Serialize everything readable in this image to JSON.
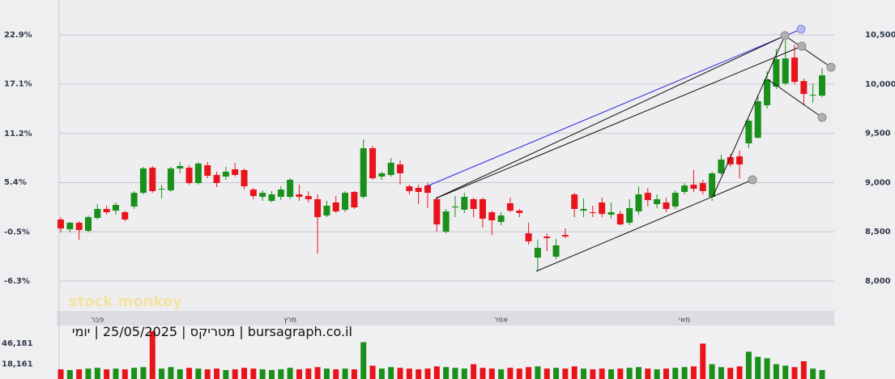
{
  "chart_data": {
    "type": "candlestick",
    "categories": [
      null,
      null,
      null,
      null,
      "פבר",
      null,
      null,
      null,
      null,
      null,
      null,
      null,
      null,
      null,
      null,
      null,
      null,
      null,
      null,
      null,
      null,
      null,
      null,
      null,
      null,
      "מרץ",
      null,
      null,
      null,
      null,
      null,
      null,
      null,
      null,
      null,
      null,
      null,
      null,
      null,
      null,
      null,
      null,
      null,
      null,
      null,
      null,
      null,
      null,
      "אפר",
      null,
      null,
      null,
      null,
      null,
      null,
      null,
      null,
      null,
      null,
      null,
      null,
      null,
      null,
      null,
      null,
      null,
      null,
      null,
      "מאי",
      null,
      null,
      null,
      null,
      null,
      null,
      null,
      null,
      null,
      null,
      null,
      null,
      null,
      null,
      null
    ],
    "open": [
      8625,
      8526,
      8592,
      8510,
      8641,
      8732,
      8715,
      8699,
      8757,
      8896,
      9151,
      8929,
      8921,
      9143,
      9151,
      8995,
      9176,
      9077,
      9061,
      9135,
      9127,
      8929,
      8855,
      8814,
      8855,
      8855,
      8880,
      8863,
      8831,
      8666,
      8798,
      8724,
      8905,
      8855,
      9349,
      9061,
      9077,
      9184,
      8962,
      8946,
      8970,
      8831,
      8501,
      8748,
      8724,
      8831,
      8831,
      8699,
      8600,
      8790,
      8715,
      8485,
      8238,
      8452,
      8247,
      8468,
      8880,
      8715,
      8699,
      8798,
      8674,
      8682,
      8592,
      8707,
      8896,
      8781,
      8798,
      8757,
      8905,
      8978,
      8995,
      8855,
      9094,
      9258,
      9266,
      9398,
      9455,
      9785,
      9974,
      10007,
      10270,
      10031,
      9883,
      9883
    ],
    "high": [
      8649,
      8600,
      8608,
      8666,
      8781,
      8765,
      8798,
      8715,
      8913,
      9160,
      9168,
      8978,
      9160,
      9209,
      9176,
      9209,
      9209,
      9110,
      9160,
      9201,
      9143,
      8946,
      8921,
      8913,
      8962,
      9044,
      8978,
      8913,
      8880,
      8814,
      8863,
      8913,
      8913,
      9439,
      9373,
      9110,
      9250,
      9225,
      8978,
      8978,
      8995,
      8855,
      8732,
      8863,
      8896,
      8847,
      8847,
      8715,
      8699,
      8847,
      8732,
      8592,
      8419,
      8485,
      8427,
      8534,
      8896,
      8839,
      8765,
      8847,
      8798,
      8715,
      8831,
      8962,
      8946,
      8880,
      8847,
      8921,
      8995,
      9127,
      9028,
      9110,
      9283,
      9291,
      9324,
      9645,
      9891,
      10130,
      10360,
      10443,
      10401,
      10056,
      10007,
      10163
    ],
    "low": [
      8493,
      8493,
      8419,
      8493,
      8625,
      8674,
      8674,
      8608,
      8732,
      8880,
      8896,
      8839,
      8905,
      9094,
      8978,
      8978,
      9044,
      8954,
      9028,
      9061,
      8929,
      8831,
      8814,
      8798,
      8822,
      8831,
      8814,
      8798,
      8279,
      8649,
      8691,
      8699,
      8732,
      8839,
      9028,
      9028,
      9061,
      8978,
      8880,
      8781,
      8740,
      8501,
      8485,
      8649,
      8691,
      8649,
      8543,
      8468,
      8567,
      8699,
      8649,
      8370,
      8107,
      8304,
      8222,
      8436,
      8649,
      8649,
      8649,
      8649,
      8633,
      8567,
      8567,
      8674,
      8757,
      8740,
      8699,
      8732,
      8880,
      8905,
      8880,
      8814,
      9077,
      9160,
      9044,
      9349,
      9447,
      9752,
      9949,
      9990,
      9998,
      9785,
      9809,
      9867
    ],
    "close": [
      8534,
      8592,
      8518,
      8649,
      8732,
      8699,
      8773,
      8625,
      8896,
      9143,
      8913,
      8937,
      9143,
      9168,
      8995,
      9193,
      9069,
      8995,
      9110,
      9077,
      8962,
      8863,
      8896,
      8880,
      8929,
      9028,
      8855,
      8831,
      8649,
      8765,
      8707,
      8896,
      8748,
      9349,
      9044,
      9094,
      9201,
      9094,
      8913,
      8905,
      8896,
      8575,
      8707,
      8757,
      8855,
      8732,
      8633,
      8617,
      8666,
      8715,
      8691,
      8403,
      8337,
      8436,
      8362,
      8452,
      8732,
      8732,
      8691,
      8682,
      8699,
      8575,
      8740,
      8880,
      8822,
      8831,
      8732,
      8896,
      8970,
      8937,
      8913,
      9094,
      9234,
      9184,
      9184,
      9628,
      9826,
      10048,
      10253,
      10261,
      10023,
      9900,
      9891,
      10089
    ],
    "volume": {
      "values": [
        11000,
        10000,
        11000,
        12000,
        13000,
        11000,
        12000,
        11000,
        13000,
        14000,
        63000,
        12000,
        14000,
        11000,
        13000,
        12000,
        11000,
        12000,
        10000,
        11000,
        13000,
        12000,
        11000,
        10000,
        11000,
        13000,
        11000,
        12000,
        14000,
        12000,
        11000,
        12000,
        11000,
        48000,
        16000,
        12000,
        14000,
        13000,
        12000,
        11000,
        12000,
        15000,
        14000,
        13000,
        12000,
        18000,
        13000,
        12000,
        11000,
        13000,
        12000,
        14000,
        15000,
        12000,
        13000,
        12000,
        15000,
        12000,
        11000,
        12000,
        11000,
        12000,
        13000,
        14000,
        12000,
        11000,
        12000,
        13000,
        14000,
        15000,
        46000,
        18000,
        14000,
        13000,
        15000,
        35000,
        28000,
        26000,
        18000,
        16000,
        14000,
        22000,
        12000,
        10000
      ],
      "ylim": [
        0,
        64000
      ],
      "yticks": [
        {
          "value": 18161,
          "label": "18,161"
        },
        {
          "value": 46181,
          "label": "46,181"
        }
      ]
    },
    "up_color": "#1a8f1a",
    "down_color": "#e8141c",
    "ylim": [
      7696,
      10854
    ],
    "yticks": [
      {
        "value": 8000,
        "label": "8,000"
      },
      {
        "value": 8500,
        "label": "8,500"
      },
      {
        "value": 9000,
        "label": "9,000"
      },
      {
        "value": 9500,
        "label": "9,500"
      },
      {
        "value": 10000,
        "label": "10,000"
      },
      {
        "value": 10500,
        "label": "10,500"
      }
    ],
    "y2lim": [
      -9.86,
      27.04
    ],
    "y2ticks": [
      {
        "value": -6.3,
        "label": "-6.3%"
      },
      {
        "value": -0.5,
        "label": "-0.5%"
      },
      {
        "value": 5.4,
        "label": "5.4%"
      },
      {
        "value": 11.2,
        "label": "11.2%"
      },
      {
        "value": 17.1,
        "label": "17.1%"
      },
      {
        "value": 22.9,
        "label": "22.9%"
      }
    ],
    "grid": true,
    "watermark": "stock monkey",
    "footer": "bursagraph.co.il | מטריקס | 25/05/2025 | יומי"
  }
}
